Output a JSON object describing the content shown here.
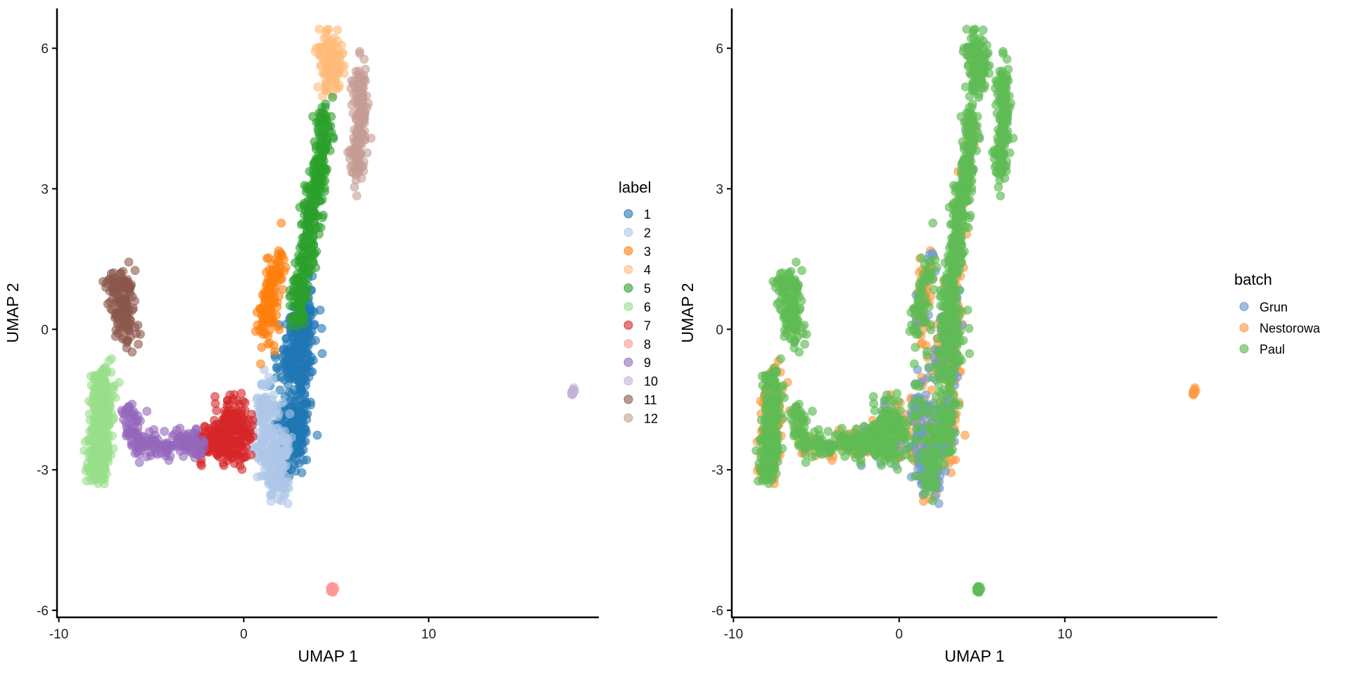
{
  "chart_data": [
    {
      "type": "scatter",
      "xlabel": "UMAP 1",
      "ylabel": "UMAP 2",
      "xlim": [
        -10.1,
        19.2
      ],
      "ylim": [
        -6.15,
        6.85
      ],
      "xticks": [
        -10,
        0,
        10
      ],
      "yticks": [
        -6,
        -3,
        0,
        3,
        6
      ],
      "grid": false,
      "legend": {
        "title": "label",
        "placement": "right"
      },
      "point_alpha": 0.6,
      "series": [
        {
          "name": "1",
          "color": "#1f77b4",
          "n": 420,
          "spread": [
            0.35,
            0.35
          ],
          "anchors": [
            [
              2.2,
              -1.0
            ],
            [
              2.9,
              -0.3
            ],
            [
              3.4,
              0.4
            ],
            [
              3.1,
              -1.6
            ],
            [
              2.7,
              -2.5
            ],
            [
              2.2,
              -2.0
            ]
          ]
        },
        {
          "name": "2",
          "color": "#aec7e8",
          "n": 260,
          "spread": [
            0.3,
            0.3
          ],
          "anchors": [
            [
              1.3,
              -1.3
            ],
            [
              1.0,
              -2.4
            ],
            [
              1.6,
              -3.0
            ],
            [
              2.1,
              -3.2
            ],
            [
              2.0,
              -2.0
            ]
          ]
        },
        {
          "name": "3",
          "color": "#ff7f0e",
          "n": 130,
          "spread": [
            0.22,
            0.28
          ],
          "anchors": [
            [
              1.1,
              -0.2
            ],
            [
              1.3,
              0.5
            ],
            [
              1.6,
              1.0
            ],
            [
              2.0,
              1.4
            ]
          ]
        },
        {
          "name": "4",
          "color": "#ffbb78",
          "n": 150,
          "spread": [
            0.25,
            0.22
          ],
          "anchors": [
            [
              4.3,
              6.0
            ],
            [
              4.9,
              5.8
            ],
            [
              4.6,
              5.3
            ]
          ]
        },
        {
          "name": "5",
          "color": "#2ca02c",
          "n": 380,
          "spread": [
            0.22,
            0.25
          ],
          "anchors": [
            [
              2.9,
              0.3
            ],
            [
              3.2,
              1.2
            ],
            [
              3.6,
              2.2
            ],
            [
              3.9,
              3.0
            ],
            [
              4.2,
              3.8
            ],
            [
              4.4,
              4.6
            ]
          ]
        },
        {
          "name": "6",
          "color": "#98df8a",
          "n": 380,
          "spread": [
            0.28,
            0.2
          ],
          "anchors": [
            [
              -7.6,
              -0.9
            ],
            [
              -7.7,
              -1.8
            ],
            [
              -7.8,
              -2.6
            ],
            [
              -8.0,
              -3.1
            ]
          ]
        },
        {
          "name": "7",
          "color": "#d62728",
          "n": 260,
          "spread": [
            0.35,
            0.22
          ],
          "anchors": [
            [
              -2.3,
              -2.4
            ],
            [
              -1.3,
              -2.3
            ],
            [
              -0.6,
              -1.8
            ],
            [
              0.1,
              -2.4
            ],
            [
              -1.0,
              -2.7
            ]
          ]
        },
        {
          "name": "8",
          "color": "#ff9896",
          "n": 25,
          "spread": [
            0.05,
            0.04
          ],
          "anchors": [
            [
              4.8,
              -5.55
            ]
          ]
        },
        {
          "name": "9",
          "color": "#9467bd",
          "n": 200,
          "spread": [
            0.25,
            0.15
          ],
          "anchors": [
            [
              -6.2,
              -1.7
            ],
            [
              -5.9,
              -2.4
            ],
            [
              -4.6,
              -2.5
            ],
            [
              -3.2,
              -2.4
            ],
            [
              -2.3,
              -2.5
            ]
          ]
        },
        {
          "name": "10",
          "color": "#c5b0d5",
          "n": 12,
          "spread": [
            0.05,
            0.04
          ],
          "anchors": [
            [
              17.8,
              -1.35
            ]
          ]
        },
        {
          "name": "11",
          "color": "#8c564b",
          "n": 150,
          "spread": [
            0.25,
            0.2
          ],
          "anchors": [
            [
              -7.2,
              0.9
            ],
            [
              -6.3,
              0.9
            ],
            [
              -6.6,
              0.3
            ],
            [
              -6.1,
              -0.2
            ]
          ]
        },
        {
          "name": "12",
          "color": "#c49c94",
          "n": 160,
          "spread": [
            0.2,
            0.25
          ],
          "anchors": [
            [
              6.3,
              5.5
            ],
            [
              6.4,
              4.7
            ],
            [
              6.2,
              3.9
            ],
            [
              6.0,
              3.4
            ]
          ]
        }
      ]
    },
    {
      "type": "scatter",
      "xlabel": "UMAP 1",
      "ylabel": "UMAP 2",
      "xlim": [
        -10.1,
        19.2
      ],
      "ylim": [
        -6.15,
        6.85
      ],
      "xticks": [
        -10,
        0,
        10
      ],
      "yticks": [
        -6,
        -3,
        0,
        3,
        6
      ],
      "grid": false,
      "legend": {
        "title": "batch",
        "placement": "right"
      },
      "point_alpha": 0.65,
      "series": [
        {
          "name": "Grun",
          "color": "#6d9bd1"
        },
        {
          "name": "Nestorowa",
          "color": "#ff9b45"
        },
        {
          "name": "Paul",
          "color": "#5fbb55"
        }
      ],
      "batch_mix_by_label": {
        "1": [
          0.2,
          0.35,
          0.45
        ],
        "2": [
          0.4,
          0.35,
          0.25
        ],
        "3": [
          0.05,
          0.45,
          0.5
        ],
        "4": [
          0,
          0,
          1
        ],
        "5": [
          0,
          0.1,
          0.9
        ],
        "6": [
          0,
          0.35,
          0.65
        ],
        "7": [
          0.1,
          0.15,
          0.75
        ],
        "8": [
          0,
          0,
          1
        ],
        "9": [
          0,
          0.2,
          0.8
        ],
        "10": [
          0,
          1,
          0
        ],
        "11": [
          0,
          0,
          1
        ],
        "12": [
          0,
          0,
          1
        ]
      }
    }
  ]
}
